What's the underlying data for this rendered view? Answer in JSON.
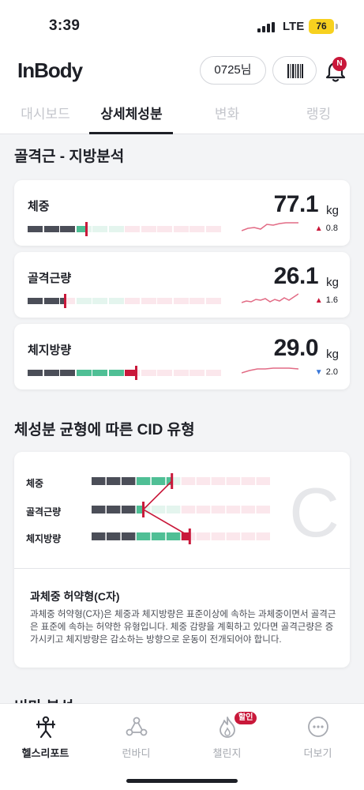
{
  "status_bar": {
    "time": "3:39",
    "network": "LTE",
    "battery": "76"
  },
  "header": {
    "logo": "InBody",
    "user_label": "0725님",
    "notification_badge": "N"
  },
  "tabs": [
    {
      "label": "대시보드",
      "active": false
    },
    {
      "label": "상세체성분",
      "active": true
    },
    {
      "label": "변화",
      "active": false
    },
    {
      "label": "랭킹",
      "active": false
    }
  ],
  "section_title": "골격근 - 지방분석",
  "metrics": [
    {
      "name": "체중",
      "value": "77.1",
      "unit": "kg",
      "delta": "0.8",
      "direction": "up",
      "level": 0.3
    },
    {
      "name": "골격근량",
      "value": "26.1",
      "unit": "kg",
      "delta": "1.6",
      "direction": "up",
      "level": 0.19
    },
    {
      "name": "체지방량",
      "value": "29.0",
      "unit": "kg",
      "delta": "2.0",
      "direction": "down",
      "level": 0.56
    }
  ],
  "cid_section_title": "체성분 균형에 따른 CID 유형",
  "cid": {
    "rows": [
      {
        "label": "체중",
        "level": 0.45
      },
      {
        "label": "골격근량",
        "level": 0.29
      },
      {
        "label": "체지방량",
        "level": 0.55
      }
    ],
    "letter": "C",
    "type_title": "과체중 허약형(C자)",
    "description": "과체중 허약형(C자)은 체중과 체지방량은 표준이상에 속하는 과체중이면서 골격근은 표준에 속하는 허약한 유형입니다. 체중 감량을 계획하고 있다면 골격근량은 증가시키고 체지방량은 감소하는 방향으로 운동이 전개되어야 합니다."
  },
  "next_section_title": "비만 분석",
  "bottom_nav": [
    {
      "label": "헬스리포트",
      "icon": "health-report-icon",
      "active": true
    },
    {
      "label": "런바디",
      "icon": "runbody-icon",
      "active": false
    },
    {
      "label": "챌린지",
      "icon": "challenge-flame-icon",
      "active": false,
      "badge": "할인"
    },
    {
      "label": "더보기",
      "icon": "more-icon",
      "active": false
    }
  ],
  "colors": {
    "dark_segment": "#4b4e58",
    "green_segment": "#4fbf95",
    "red_segment": "#c9183a",
    "pale_green": "#e4f5ee",
    "pale_red": "#fbe7ec",
    "up_arrow": "#c9183a",
    "down_arrow": "#3a78d9"
  }
}
